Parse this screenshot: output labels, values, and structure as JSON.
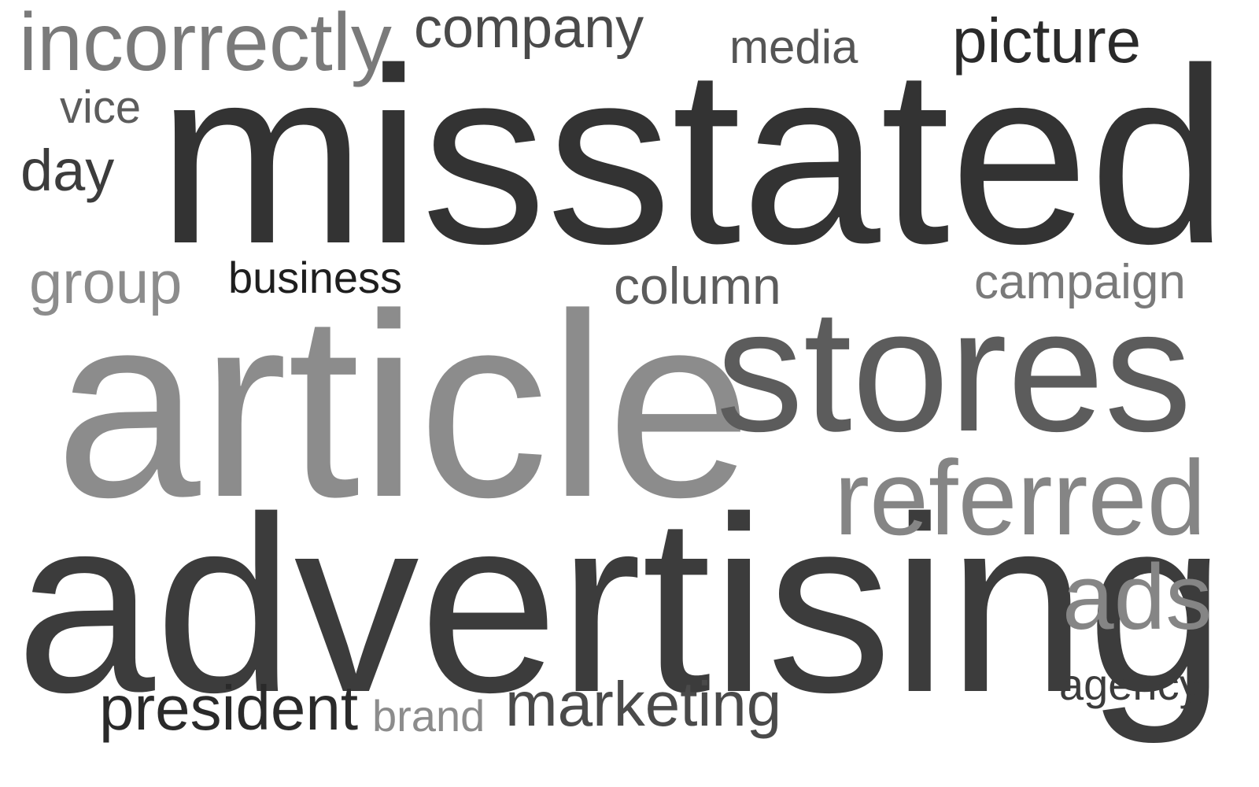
{
  "colors": {
    "background": "#ffffff",
    "darkest": "#1e1e1e",
    "dark": "#333333",
    "dark_alt": "#3c3c3c",
    "medium_dark": "#4a4a4a",
    "medium": "#5c5c5c",
    "light": "#808080",
    "lighter": "#8c8c8c"
  },
  "words": [
    {
      "id": "misstated",
      "text": "misstated",
      "color": "#333333"
    },
    {
      "id": "article",
      "text": "article",
      "color": "#8c8c8c"
    },
    {
      "id": "advertising",
      "text": "advertising",
      "color": "#3c3c3c"
    },
    {
      "id": "stores",
      "text": "stores",
      "color": "#5c5c5c"
    },
    {
      "id": "referred",
      "text": "referred",
      "color": "#858585"
    },
    {
      "id": "incorrectly",
      "text": "incorrectly",
      "color": "#7a7a7a"
    },
    {
      "id": "company",
      "text": "company",
      "color": "#4a4a4a"
    },
    {
      "id": "media",
      "text": "media",
      "color": "#555555"
    },
    {
      "id": "picture",
      "text": "picture",
      "color": "#2a2a2a"
    },
    {
      "id": "vice",
      "text": "vice",
      "color": "#5c5c5c"
    },
    {
      "id": "day",
      "text": "day",
      "color": "#3c3c3c"
    },
    {
      "id": "group",
      "text": "group",
      "color": "#8c8c8c"
    },
    {
      "id": "business",
      "text": "business",
      "color": "#1e1e1e"
    },
    {
      "id": "column",
      "text": "column",
      "color": "#5c5c5c"
    },
    {
      "id": "campaign",
      "text": "campaign",
      "color": "#7a7a7a"
    },
    {
      "id": "ads",
      "text": "ads",
      "color": "#858585"
    },
    {
      "id": "agency",
      "text": "agency",
      "color": "#3c3c3c"
    },
    {
      "id": "president",
      "text": "president",
      "color": "#2a2a2a"
    },
    {
      "id": "brand",
      "text": "brand",
      "color": "#8c8c8c"
    },
    {
      "id": "marketing",
      "text": "marketing",
      "color": "#4a4a4a"
    }
  ]
}
